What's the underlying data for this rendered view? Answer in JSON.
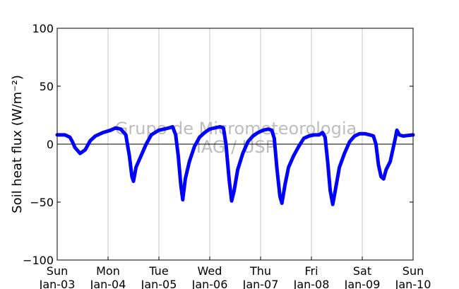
{
  "chart_data": {
    "type": "line",
    "title": "",
    "xlabel": "",
    "ylabel": "Soil heat flux (W/m⁻²)",
    "ylim": [
      -100,
      100
    ],
    "xlim": [
      0,
      7
    ],
    "grid": "vertical-only",
    "yticks": [
      -100,
      -50,
      0,
      50,
      100
    ],
    "xticks": [
      {
        "day": "Sun",
        "date": "Jan-03"
      },
      {
        "day": "Mon",
        "date": "Jan-04"
      },
      {
        "day": "Tue",
        "date": "Jan-05"
      },
      {
        "day": "Wed",
        "date": "Jan-06"
      },
      {
        "day": "Thu",
        "date": "Jan-07"
      },
      {
        "day": "Fri",
        "date": "Jan-08"
      },
      {
        "day": "Sat",
        "date": "Jan-09"
      },
      {
        "day": "Sun",
        "date": "Jan-10"
      }
    ],
    "series": [
      {
        "color": "#0000ff",
        "points": [
          [
            0.0,
            8
          ],
          [
            0.15,
            8
          ],
          [
            0.25,
            6
          ],
          [
            0.3,
            2
          ],
          [
            0.35,
            -3
          ],
          [
            0.45,
            -8
          ],
          [
            0.55,
            -5
          ],
          [
            0.65,
            3
          ],
          [
            0.75,
            7
          ],
          [
            0.9,
            10
          ],
          [
            1.05,
            12
          ],
          [
            1.15,
            14
          ],
          [
            1.25,
            13
          ],
          [
            1.35,
            8
          ],
          [
            1.42,
            -10
          ],
          [
            1.47,
            -28
          ],
          [
            1.5,
            -32
          ],
          [
            1.55,
            -20
          ],
          [
            1.65,
            -10
          ],
          [
            1.75,
            0
          ],
          [
            1.85,
            8
          ],
          [
            2.0,
            12
          ],
          [
            2.1,
            13
          ],
          [
            2.2,
            14
          ],
          [
            2.27,
            15
          ],
          [
            2.33,
            8
          ],
          [
            2.38,
            -10
          ],
          [
            2.43,
            -35
          ],
          [
            2.47,
            -48
          ],
          [
            2.52,
            -30
          ],
          [
            2.6,
            -15
          ],
          [
            2.7,
            -2
          ],
          [
            2.8,
            6
          ],
          [
            2.9,
            10
          ],
          [
            3.0,
            13
          ],
          [
            3.1,
            14
          ],
          [
            3.2,
            15
          ],
          [
            3.27,
            14
          ],
          [
            3.32,
            0
          ],
          [
            3.38,
            -30
          ],
          [
            3.43,
            -49
          ],
          [
            3.48,
            -40
          ],
          [
            3.55,
            -22
          ],
          [
            3.65,
            -8
          ],
          [
            3.75,
            2
          ],
          [
            3.85,
            7
          ],
          [
            3.95,
            10
          ],
          [
            4.05,
            12
          ],
          [
            4.15,
            13
          ],
          [
            4.22,
            12
          ],
          [
            4.27,
            5
          ],
          [
            4.32,
            -20
          ],
          [
            4.38,
            -45
          ],
          [
            4.42,
            -51
          ],
          [
            4.48,
            -35
          ],
          [
            4.55,
            -20
          ],
          [
            4.65,
            -10
          ],
          [
            4.75,
            -2
          ],
          [
            4.85,
            5
          ],
          [
            4.95,
            7
          ],
          [
            5.05,
            8
          ],
          [
            5.15,
            8
          ],
          [
            5.22,
            10
          ],
          [
            5.27,
            6
          ],
          [
            5.32,
            -15
          ],
          [
            5.37,
            -40
          ],
          [
            5.42,
            -52
          ],
          [
            5.47,
            -40
          ],
          [
            5.55,
            -20
          ],
          [
            5.65,
            -8
          ],
          [
            5.75,
            2
          ],
          [
            5.85,
            7
          ],
          [
            5.95,
            9
          ],
          [
            6.05,
            9
          ],
          [
            6.15,
            8
          ],
          [
            6.22,
            7
          ],
          [
            6.27,
            0
          ],
          [
            6.32,
            -18
          ],
          [
            6.37,
            -28
          ],
          [
            6.42,
            -30
          ],
          [
            6.47,
            -22
          ],
          [
            6.55,
            -15
          ],
          [
            6.6,
            -5
          ],
          [
            6.65,
            5
          ],
          [
            6.68,
            12
          ],
          [
            6.73,
            8
          ],
          [
            6.8,
            7
          ],
          [
            7.0,
            8
          ]
        ]
      }
    ],
    "watermark": [
      "Grupo de Micrometeorologia",
      "IAG / USP"
    ]
  }
}
